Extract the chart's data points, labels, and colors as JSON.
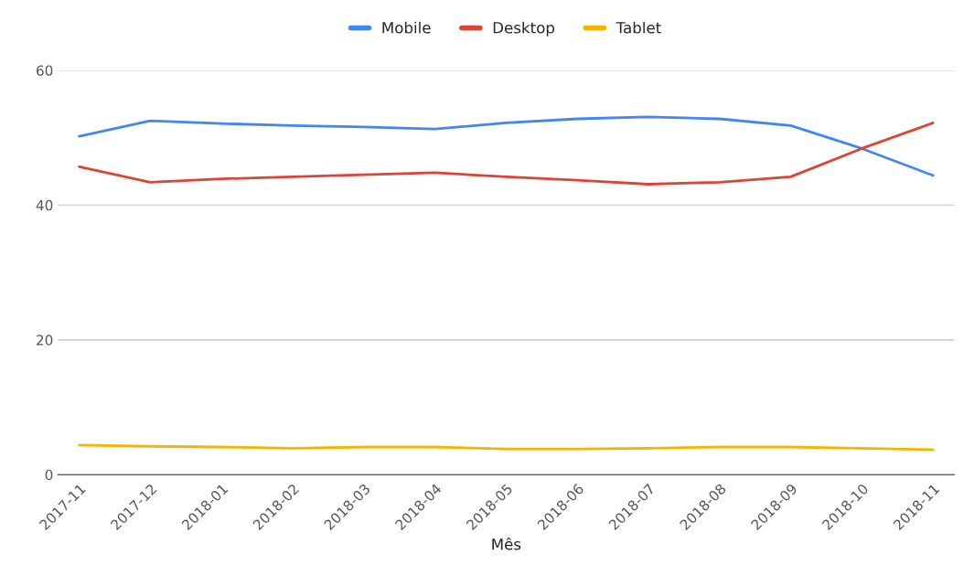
{
  "chart_data": {
    "type": "line",
    "xlabel": "Mês",
    "categories": [
      "2017-11",
      "2017-12",
      "2018-01",
      "2018-02",
      "2018-03",
      "2018-04",
      "2018-05",
      "2018-06",
      "2018-07",
      "2018-08",
      "2018-09",
      "2018-10",
      "2018-11"
    ],
    "series": [
      {
        "name": "Mobile",
        "color": "#4285f4",
        "values": [
          50.2,
          52.5,
          52.1,
          51.8,
          51.6,
          51.3,
          52.2,
          52.8,
          53.1,
          52.8,
          51.8,
          48.4,
          44.4
        ]
      },
      {
        "name": "Desktop",
        "color": "#db4437",
        "values": [
          45.7,
          43.4,
          43.9,
          44.2,
          44.5,
          44.8,
          44.2,
          43.7,
          43.1,
          43.4,
          44.2,
          48.4,
          52.2
        ]
      },
      {
        "name": "Tablet",
        "color": "#f4b400",
        "values": [
          4.4,
          4.2,
          4.1,
          3.9,
          4.1,
          4.1,
          3.8,
          3.8,
          3.9,
          4.1,
          4.1,
          3.9,
          3.7
        ]
      }
    ],
    "ylim": [
      0,
      60
    ],
    "yticks": [
      0,
      20,
      40,
      60
    ],
    "grid": "y",
    "legend": "top",
    "marker": "none",
    "line_style": "solid"
  }
}
